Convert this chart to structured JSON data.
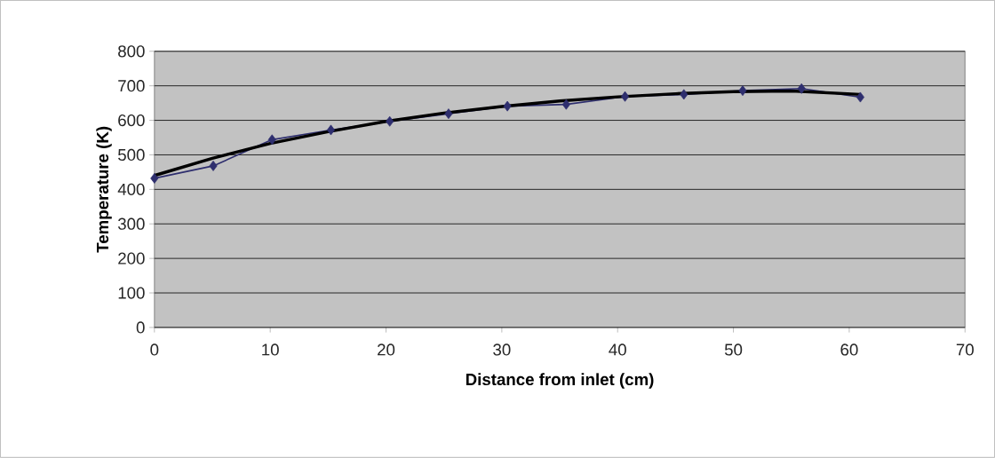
{
  "chart_data": {
    "type": "line",
    "xlabel": "Distance from inlet (cm)",
    "ylabel": "Temperature (K)",
    "x": [
      0,
      5.08,
      10.16,
      15.24,
      20.32,
      25.4,
      30.48,
      35.56,
      40.64,
      45.72,
      50.8,
      55.88,
      60.96
    ],
    "series": [
      {
        "color": "#2e2e6e",
        "marker": "diamond",
        "values": [
          432,
          468,
          544,
          572,
          597,
          619,
          641,
          646,
          669,
          675,
          686,
          692,
          667
        ]
      },
      {
        "type": "line",
        "color": "#000000",
        "marker": "none",
        "x": [
          0,
          5,
          10,
          15,
          20,
          25,
          30,
          35,
          40,
          45,
          50,
          55,
          60.96
        ],
        "values": [
          440,
          490,
          533,
          567,
          597,
          621,
          640,
          656,
          668,
          677,
          683,
          685,
          675
        ]
      }
    ],
    "xlim": [
      0,
      70
    ],
    "xticks": [
      0,
      10,
      20,
      30,
      40,
      50,
      60,
      70
    ],
    "ylim": [
      0,
      800
    ],
    "yticks": [
      0,
      100,
      200,
      300,
      400,
      500,
      600,
      700,
      800
    ],
    "grid": "y"
  }
}
